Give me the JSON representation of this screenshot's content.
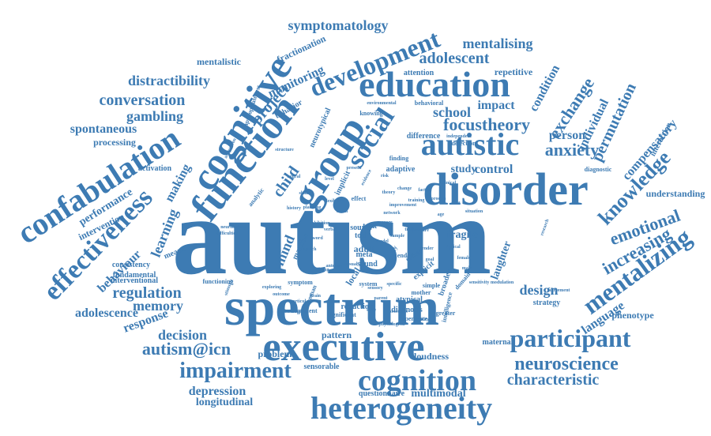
{
  "cloud": {
    "color": "#3d7bb3",
    "words": [
      {
        "text": "autism"
      },
      {
        "text": "spectrum"
      },
      {
        "text": "executive"
      },
      {
        "text": "heterogeneity"
      },
      {
        "text": "disorder"
      },
      {
        "text": "cognition"
      },
      {
        "text": "education"
      },
      {
        "text": "function"
      },
      {
        "text": "cognitive"
      },
      {
        "text": "confabulation"
      },
      {
        "text": "group"
      },
      {
        "text": "development"
      },
      {
        "text": "autistic"
      },
      {
        "text": "mentalizing"
      },
      {
        "text": "effectiveness"
      },
      {
        "text": "participant"
      },
      {
        "text": "neuroscience"
      },
      {
        "text": "impairment"
      },
      {
        "text": "knowledge"
      },
      {
        "text": "social"
      },
      {
        "text": "characteristic"
      },
      {
        "text": "autism@icn"
      },
      {
        "text": "emotional"
      },
      {
        "text": "increasing"
      },
      {
        "text": "regulation"
      },
      {
        "text": "focustheory"
      },
      {
        "text": "conversation"
      },
      {
        "text": "project"
      },
      {
        "text": "exchange"
      },
      {
        "text": "anxiety"
      },
      {
        "text": "adolescent"
      },
      {
        "text": "distractibility"
      },
      {
        "text": "symptomatology"
      },
      {
        "text": "mentalising"
      },
      {
        "text": "learning"
      },
      {
        "text": "permutation"
      },
      {
        "text": "design"
      },
      {
        "text": "decision"
      },
      {
        "text": "memory"
      },
      {
        "text": "gambling"
      },
      {
        "text": "monitoring"
      },
      {
        "text": "school"
      },
      {
        "text": "child"
      },
      {
        "text": "mind"
      },
      {
        "text": "depression"
      },
      {
        "text": "spontaneous"
      },
      {
        "text": "behaviour"
      },
      {
        "text": "response"
      },
      {
        "text": "adolescence"
      },
      {
        "text": "longitudinal"
      },
      {
        "text": "compensatory"
      },
      {
        "text": "individual"
      },
      {
        "text": "language"
      },
      {
        "text": "multimodal"
      },
      {
        "text": "condition"
      },
      {
        "text": "person"
      },
      {
        "text": "control"
      },
      {
        "text": "impact"
      },
      {
        "text": "making"
      },
      {
        "text": "performance"
      },
      {
        "text": "intervention"
      },
      {
        "text": "understanding"
      },
      {
        "text": "phenotype"
      },
      {
        "text": "laughter"
      },
      {
        "text": "fragile"
      },
      {
        "text": "problem"
      },
      {
        "text": "pattern"
      },
      {
        "text": "loudness"
      },
      {
        "text": "processing"
      },
      {
        "text": "repetitive"
      },
      {
        "text": "fractionation"
      },
      {
        "text": "mentalistic"
      },
      {
        "text": "study"
      },
      {
        "text": "strategy"
      },
      {
        "text": "measure"
      },
      {
        "text": "consistency"
      },
      {
        "text": "fundamental"
      },
      {
        "text": "interventional"
      },
      {
        "text": "sensorable"
      },
      {
        "text": "questionnaire"
      },
      {
        "text": "maternal"
      },
      {
        "text": "attention"
      },
      {
        "text": "difference"
      },
      {
        "text": "source"
      },
      {
        "text": "adult"
      },
      {
        "text": "sound"
      },
      {
        "text": "meta"
      },
      {
        "text": "tool"
      },
      {
        "text": "task"
      },
      {
        "text": "activation"
      },
      {
        "text": "interaction"
      },
      {
        "text": "diagnostic"
      },
      {
        "text": "detection"
      },
      {
        "text": "adaptive"
      },
      {
        "text": "implicit"
      },
      {
        "text": "machine"
      },
      {
        "text": "functioning"
      },
      {
        "text": "symptom"
      },
      {
        "text": "reduction"
      },
      {
        "text": "atypical"
      },
      {
        "text": "diagnosis"
      },
      {
        "text": "experience"
      },
      {
        "text": "broader"
      },
      {
        "text": "behavioral"
      },
      {
        "text": "behavior"
      },
      {
        "text": "appropriateness"
      },
      {
        "text": "knowing"
      },
      {
        "text": "environmental"
      },
      {
        "text": "neurotypical"
      },
      {
        "text": "adaptation"
      },
      {
        "text": "analytic"
      },
      {
        "text": "effect"
      },
      {
        "text": "history"
      },
      {
        "text": "mother"
      },
      {
        "text": "explicit"
      },
      {
        "text": "deficit"
      },
      {
        "text": "local"
      },
      {
        "text": "sensitivity modulation"
      },
      {
        "text": "agreement"
      },
      {
        "text": "significant"
      },
      {
        "text": "argument"
      },
      {
        "text": "system"
      },
      {
        "text": "processes"
      },
      {
        "text": "greater"
      },
      {
        "text": "domain"
      },
      {
        "text": "ended"
      },
      {
        "text": "reality"
      },
      {
        "text": "stimulus"
      },
      {
        "text": "exploring"
      },
      {
        "text": "finding"
      },
      {
        "text": "present"
      },
      {
        "text": "evidence"
      },
      {
        "text": "parent"
      },
      {
        "text": "woman"
      },
      {
        "text": "intelligence"
      },
      {
        "text": "situation"
      },
      {
        "text": "improvement"
      },
      {
        "text": "test"
      },
      {
        "text": "visual"
      },
      {
        "text": "simple"
      },
      {
        "text": "specific"
      },
      {
        "text": "physiological"
      },
      {
        "text": "outcome"
      },
      {
        "text": "particular"
      },
      {
        "text": "abnormality"
      },
      {
        "text": "structure"
      },
      {
        "text": "research"
      },
      {
        "text": "independent"
      },
      {
        "text": "neurological"
      },
      {
        "text": "difficulties"
      },
      {
        "text": "ability"
      },
      {
        "text": "pressure"
      },
      {
        "text": "sensory"
      },
      {
        "text": "neural"
      },
      {
        "text": "skills"
      },
      {
        "text": "theory"
      },
      {
        "text": "social"
      },
      {
        "text": "brain"
      },
      {
        "text": "risk"
      },
      {
        "text": "level"
      },
      {
        "text": "gender"
      },
      {
        "text": "goal"
      },
      {
        "text": "model"
      },
      {
        "text": "role"
      },
      {
        "text": "sample"
      },
      {
        "text": "score"
      },
      {
        "text": "state"
      },
      {
        "text": "data"
      },
      {
        "text": "age"
      },
      {
        "text": "trait"
      },
      {
        "text": "process"
      },
      {
        "text": "clinical"
      },
      {
        "text": "training"
      },
      {
        "text": "network"
      },
      {
        "text": "factor"
      },
      {
        "text": "change"
      },
      {
        "text": "flexibility"
      },
      {
        "text": "planning"
      },
      {
        "text": "inhibition"
      },
      {
        "text": "verbal"
      },
      {
        "text": "word"
      },
      {
        "text": "speech"
      },
      {
        "text": "anterior"
      },
      {
        "text": "sibling"
      },
      {
        "text": "typical"
      },
      {
        "text": "female"
      },
      {
        "text": "male"
      }
    ]
  }
}
